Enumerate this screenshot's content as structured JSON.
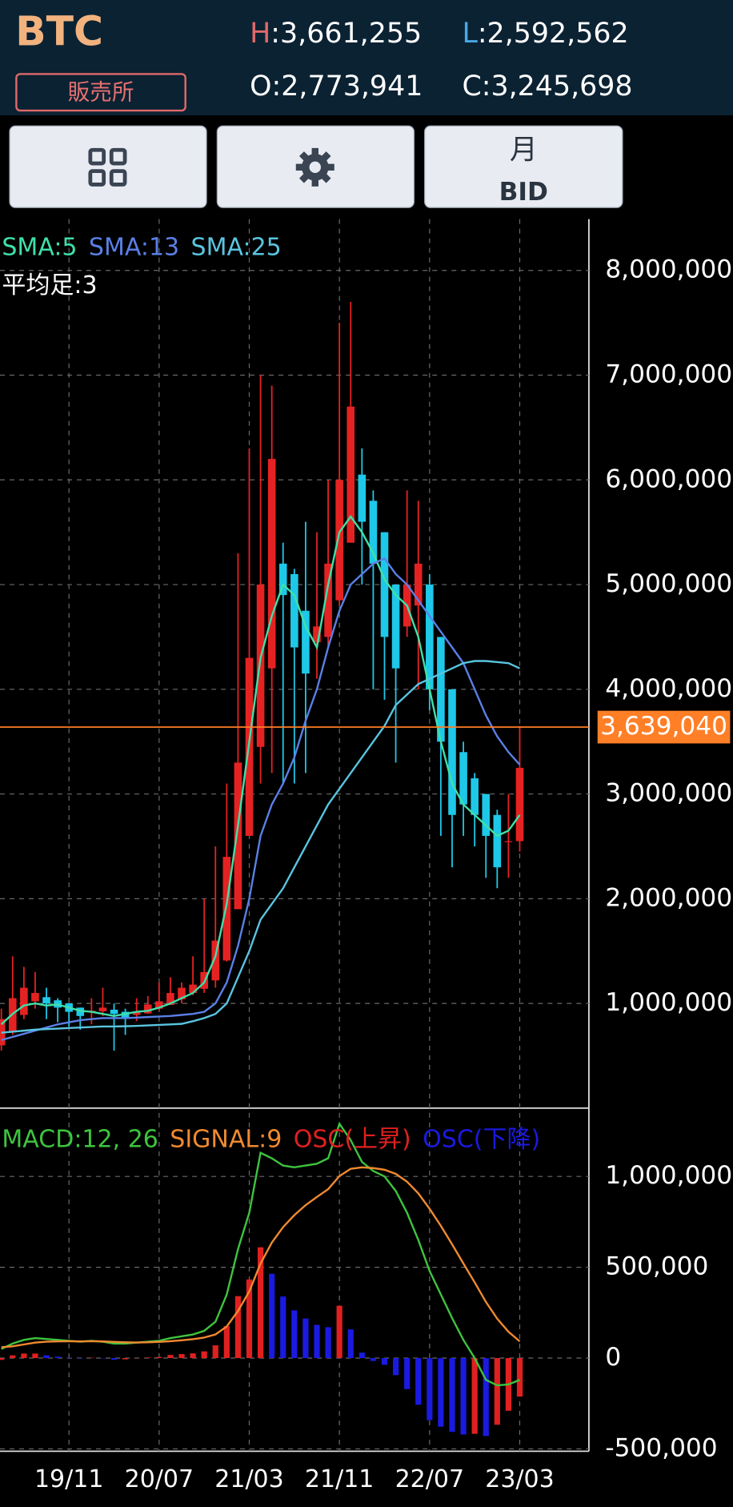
{
  "header": {
    "symbol": "BTC",
    "market": "販売所",
    "high": {
      "label": "H",
      "value": ":3,661,255"
    },
    "low": {
      "label": "L",
      "value": ":2,592,562"
    },
    "open": {
      "label": "O",
      "value": ":2,773,941"
    },
    "close": {
      "label": "C",
      "value": ":3,245,698"
    }
  },
  "toolbar": {
    "period": "月",
    "price_type": "BID"
  },
  "chart_data": [
    {
      "type": "candlestick",
      "annotation": "平均足:3",
      "categories": [
        null,
        null,
        null,
        null,
        null,
        null,
        "19/11",
        null,
        null,
        null,
        null,
        null,
        null,
        null,
        "20/07",
        null,
        null,
        null,
        null,
        null,
        null,
        null,
        "21/03",
        null,
        null,
        null,
        null,
        null,
        null,
        null,
        "21/11",
        null,
        null,
        null,
        null,
        null,
        null,
        null,
        "22/07",
        null,
        null,
        null,
        null,
        null,
        null,
        null,
        "23/03"
      ],
      "open": [
        600000,
        725000,
        890000,
        1020000,
        1060000,
        1030000,
        1000000,
        960000,
        920000,
        925000,
        940000,
        920000,
        890000,
        905000,
        950000,
        985000,
        1040000,
        1100000,
        1140000,
        1220000,
        1410000,
        1900000,
        2600000,
        3450000,
        4200000,
        5200000,
        5100000,
        4750000,
        4450000,
        4500000,
        4850000,
        5400000,
        6050000,
        5800000,
        5500000,
        5000000,
        4600000,
        4800000,
        5000000,
        4500000,
        4000000,
        3400000,
        3150000,
        3000000,
        2800000,
        2550000,
        2550000
      ],
      "high": [
        950000,
        1450000,
        1350000,
        1300000,
        1150000,
        1050000,
        1000000,
        960000,
        1050000,
        1150000,
        1000000,
        950000,
        1050000,
        1070000,
        1200000,
        1250000,
        1200000,
        1450000,
        2000000,
        2500000,
        3100000,
        5300000,
        6300000,
        7000000,
        6900000,
        5400000,
        5150000,
        5600000,
        5500000,
        6000000,
        7500000,
        7700000,
        6300000,
        5900000,
        5500000,
        5000000,
        5900000,
        5800000,
        5100000,
        4500000,
        4000000,
        3500000,
        3200000,
        3000000,
        2850000,
        3000000,
        3650000
      ],
      "low": [
        550000,
        700000,
        850000,
        950000,
        850000,
        820000,
        780000,
        750000,
        800000,
        880000,
        550000,
        700000,
        830000,
        900000,
        930000,
        1000000,
        1000000,
        1080000,
        1100000,
        1150000,
        1400000,
        1900000,
        2600000,
        3100000,
        3200000,
        3100000,
        3100000,
        3200000,
        4100000,
        4400000,
        4800000,
        5400000,
        5000000,
        4000000,
        3900000,
        3300000,
        4500000,
        4000000,
        3800000,
        2600000,
        2300000,
        2600000,
        2500000,
        2200000,
        2100000,
        2200000,
        2450000
      ],
      "close": [
        850000,
        1050000,
        1150000,
        1100000,
        1000000,
        960000,
        920000,
        880000,
        930000,
        960000,
        900000,
        860000,
        920000,
        990000,
        1020000,
        1100000,
        1150000,
        1180000,
        1300000,
        1600000,
        2400000,
        3300000,
        4300000,
        5000000,
        6200000,
        4900000,
        4400000,
        4150000,
        4600000,
        5200000,
        6000000,
        6700000,
        5600000,
        5200000,
        4500000,
        4200000,
        5000000,
        5200000,
        4000000,
        3500000,
        2800000,
        2900000,
        2800000,
        2600000,
        2300000,
        2550000,
        3250000
      ],
      "up_color": "#e52222",
      "down_color": "#1ec8e8",
      "series": [
        {
          "name": "SMA:5",
          "color": "#3fe0a8",
          "values": [
            800000,
            900000,
            980000,
            1000000,
            980000,
            990000,
            960000,
            930000,
            920000,
            900000,
            880000,
            900000,
            920000,
            930000,
            960000,
            1000000,
            1050000,
            1100000,
            1200000,
            1450000,
            1950000,
            2700000,
            3500000,
            4300000,
            4700000,
            5000000,
            4900000,
            4600000,
            4400000,
            5000000,
            5500000,
            5650000,
            5500000,
            5300000,
            5050000,
            4900000,
            4800000,
            4500000,
            4000000,
            3500000,
            3100000,
            2900000,
            2800000,
            2700000,
            2600000,
            2650000,
            2800000
          ]
        },
        {
          "name": "SMA:13",
          "color": "#5a80e6",
          "values": [
            650000,
            680000,
            710000,
            740000,
            770000,
            800000,
            820000,
            840000,
            850000,
            860000,
            860000,
            860000,
            865000,
            870000,
            875000,
            880000,
            890000,
            900000,
            920000,
            1000000,
            1200000,
            1550000,
            2000000,
            2600000,
            2900000,
            3100000,
            3350000,
            3700000,
            4000000,
            4400000,
            4750000,
            5000000,
            5100000,
            5200000,
            5250000,
            5100000,
            5000000,
            4850000,
            4700000,
            4550000,
            4400000,
            4250000,
            4000000,
            3750000,
            3550000,
            3400000,
            3280000
          ]
        },
        {
          "name": "SMA:25",
          "color": "#5ac4e0",
          "values": [
            720000,
            730000,
            740000,
            750000,
            755000,
            760000,
            765000,
            770000,
            775000,
            780000,
            780000,
            782000,
            785000,
            790000,
            795000,
            800000,
            805000,
            830000,
            860000,
            900000,
            1000000,
            1250000,
            1500000,
            1800000,
            1950000,
            2100000,
            2300000,
            2500000,
            2700000,
            2900000,
            3050000,
            3200000,
            3350000,
            3500000,
            3650000,
            3850000,
            3950000,
            4050000,
            4100000,
            4150000,
            4200000,
            4250000,
            4270000,
            4270000,
            4260000,
            4250000,
            4200000
          ]
        }
      ],
      "current_price": {
        "value": 3639040,
        "label": "3,639,040",
        "color": "#ff7f27"
      },
      "ylim": [
        0,
        8490000
      ],
      "yticks": [
        {
          "value": 1000000,
          "label": "1,000,000"
        },
        {
          "value": 2000000,
          "label": "2,000,000"
        },
        {
          "value": 3000000,
          "label": "3,000,000"
        },
        {
          "value": 4000000,
          "label": "4,000,000"
        },
        {
          "value": 5000000,
          "label": "5,000,000"
        },
        {
          "value": 6000000,
          "label": "6,000,000"
        },
        {
          "value": 7000000,
          "label": "7,000,000"
        },
        {
          "value": 8000000,
          "label": "8,000,000"
        }
      ],
      "grid": true
    },
    {
      "type": "macd",
      "series": [
        {
          "name": "MACD:12, 26",
          "color": "#3ec43e",
          "values": [
            50000,
            80000,
            100000,
            110000,
            105000,
            100000,
            95000,
            90000,
            95000,
            90000,
            80000,
            80000,
            85000,
            90000,
            95000,
            110000,
            120000,
            130000,
            150000,
            200000,
            350000,
            600000,
            800000,
            1130000,
            1100000,
            1060000,
            1050000,
            1060000,
            1070000,
            1100000,
            1290000,
            1200000,
            1080000,
            1030000,
            1000000,
            920000,
            800000,
            650000,
            480000,
            350000,
            220000,
            100000,
            0,
            -120000,
            -150000,
            -145000,
            -120000
          ]
        },
        {
          "name": "SIGNAL:9",
          "color": "#f08a30",
          "values": [
            60000,
            65000,
            75000,
            85000,
            90000,
            92000,
            93000,
            92000,
            93000,
            92000,
            89000,
            87000,
            86000,
            87000,
            89000,
            93000,
            98000,
            104000,
            113000,
            130000,
            174000,
            259000,
            367000,
            520000,
            636000,
            721000,
            787000,
            842000,
            887000,
            930000,
            1002000,
            1042000,
            1050000,
            1046000,
            1037000,
            1014000,
            971000,
            907000,
            822000,
            728000,
            626000,
            521000,
            417000,
            309000,
            217000,
            145000,
            92000
          ]
        }
      ],
      "histogram": {
        "up_name": "OSC(上昇)",
        "up_color": "#e02020",
        "down_name": "OSC(下降)",
        "down_color": "#1a1ae0",
        "values": [
          -10000,
          15000,
          25000,
          25000,
          15000,
          8000,
          2000,
          -2000,
          2000,
          -2000,
          -9000,
          -7000,
          -1000,
          3000,
          6000,
          17000,
          22000,
          26000,
          37000,
          70000,
          176000,
          341000,
          433000,
          610000,
          464000,
          339000,
          263000,
          218000,
          183000,
          170000,
          288000,
          158000,
          30000,
          -16000,
          -37000,
          -94000,
          -171000,
          -257000,
          -342000,
          -378000,
          -406000,
          -421000,
          -417000,
          -429000,
          -367000,
          -290000,
          -212000
        ]
      },
      "ylim": [
        -513000,
        1376000
      ],
      "yticks": [
        {
          "value": -500000,
          "label": "-500,000"
        },
        0,
        {
          "value": 500000,
          "label": "500,000"
        },
        {
          "value": 1000000,
          "label": "1,000,000"
        }
      ],
      "grid": true
    }
  ]
}
